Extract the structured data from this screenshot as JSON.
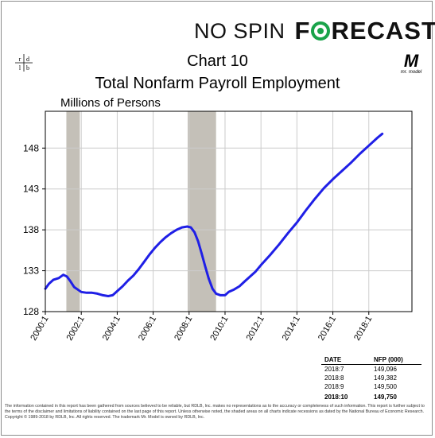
{
  "brand": {
    "part1": "NO SPIN",
    "part2_pre": "F",
    "part2_post": "RECAST"
  },
  "logo": {
    "letters": [
      "r",
      "d",
      "l",
      "b"
    ],
    "mr_model_letter": "M",
    "mr_model_text": "mr. model"
  },
  "colors": {
    "line": "#1f1fe6",
    "recession": "#c4c0b8",
    "grid": "#cccccc",
    "brand_accent": "#1aa34a"
  },
  "chart_data": {
    "type": "line",
    "title": "Chart 10",
    "subtitle": "Total Nonfarm Payroll Employment",
    "ylabel": "Millions of Persons",
    "xlabel": "",
    "xlim": [
      2000.0,
      2020.4
    ],
    "ylim": [
      128,
      152.5
    ],
    "grid": true,
    "yticks": [
      128,
      133,
      138,
      143,
      148
    ],
    "xticks": [
      {
        "label": "2000:1",
        "value": 2000.0
      },
      {
        "label": "2002:1",
        "value": 2002.0
      },
      {
        "label": "2004:1",
        "value": 2004.0
      },
      {
        "label": "2006:1",
        "value": 2006.0
      },
      {
        "label": "2008:1",
        "value": 2008.0
      },
      {
        "label": "2010:1",
        "value": 2010.0
      },
      {
        "label": "2012:1",
        "value": 2012.0
      },
      {
        "label": "2014:1",
        "value": 2014.0
      },
      {
        "label": "2016:1",
        "value": 2016.0
      },
      {
        "label": "2018:1",
        "value": 2018.0
      }
    ],
    "recessions": [
      [
        2001.17,
        2001.92
      ],
      [
        2007.92,
        2009.5
      ]
    ],
    "series": [
      {
        "x": [
          2000.0,
          2000.2,
          2000.45,
          2000.75,
          2001.0,
          2001.2,
          2001.4,
          2001.6,
          2001.8,
          2002.0,
          2002.3,
          2002.6,
          2002.9,
          2003.2,
          2003.5,
          2003.75,
          2004.0,
          2004.3,
          2004.6,
          2004.9,
          2005.2,
          2005.5,
          2005.8,
          2006.1,
          2006.4,
          2006.7,
          2007.0,
          2007.3,
          2007.6,
          2007.9,
          2008.1,
          2008.3,
          2008.5,
          2008.7,
          2008.9,
          2009.1,
          2009.3,
          2009.5,
          2009.75,
          2010.0,
          2010.2,
          2010.5,
          2010.8,
          2011.1,
          2011.4,
          2011.7,
          2012.0,
          2012.5,
          2013.0,
          2013.5,
          2014.0,
          2014.5,
          2015.0,
          2015.5,
          2016.0,
          2016.5,
          2017.0,
          2017.5,
          2018.0,
          2018.5,
          2018.75
        ],
        "y": [
          130.8,
          131.4,
          131.9,
          132.1,
          132.5,
          132.3,
          131.7,
          131.0,
          130.7,
          130.4,
          130.3,
          130.3,
          130.2,
          130.0,
          129.9,
          130.0,
          130.5,
          131.1,
          131.8,
          132.4,
          133.2,
          134.1,
          135.0,
          135.8,
          136.5,
          137.1,
          137.6,
          138.0,
          138.3,
          138.4,
          138.3,
          137.7,
          136.6,
          135.1,
          133.5,
          132.0,
          130.8,
          130.2,
          130.0,
          130.0,
          130.4,
          130.7,
          131.1,
          131.7,
          132.3,
          132.9,
          133.7,
          134.9,
          136.2,
          137.6,
          138.9,
          140.4,
          141.8,
          143.1,
          144.2,
          145.2,
          146.2,
          147.3,
          148.3,
          149.3,
          149.75
        ]
      }
    ]
  },
  "table": {
    "headers": [
      "DATE",
      "NFP (000)"
    ],
    "rows": [
      [
        "2018:7",
        "149,096"
      ],
      [
        "2018:8",
        "149,382"
      ],
      [
        "2018:9",
        "149,500"
      ]
    ],
    "last_row": [
      "2018:10",
      "149,750"
    ]
  },
  "footer": "The information contained in this report has been gathered from sources believed to be reliable, but RDLB, Inc. makes no representations as to the accuracy or completeness of such information. This report is further subject to the terms of the disclaimer and limitations of liability contained on the last page of this report. Unless otherwise noted, the shaded areas on all charts indicate recessions as dated by the National Bureau of Economic Research. Copyright © 1989-2018 by RDLB, Inc. All rights reserved. The trademark Mr. Model is owned by RDLB, Inc."
}
